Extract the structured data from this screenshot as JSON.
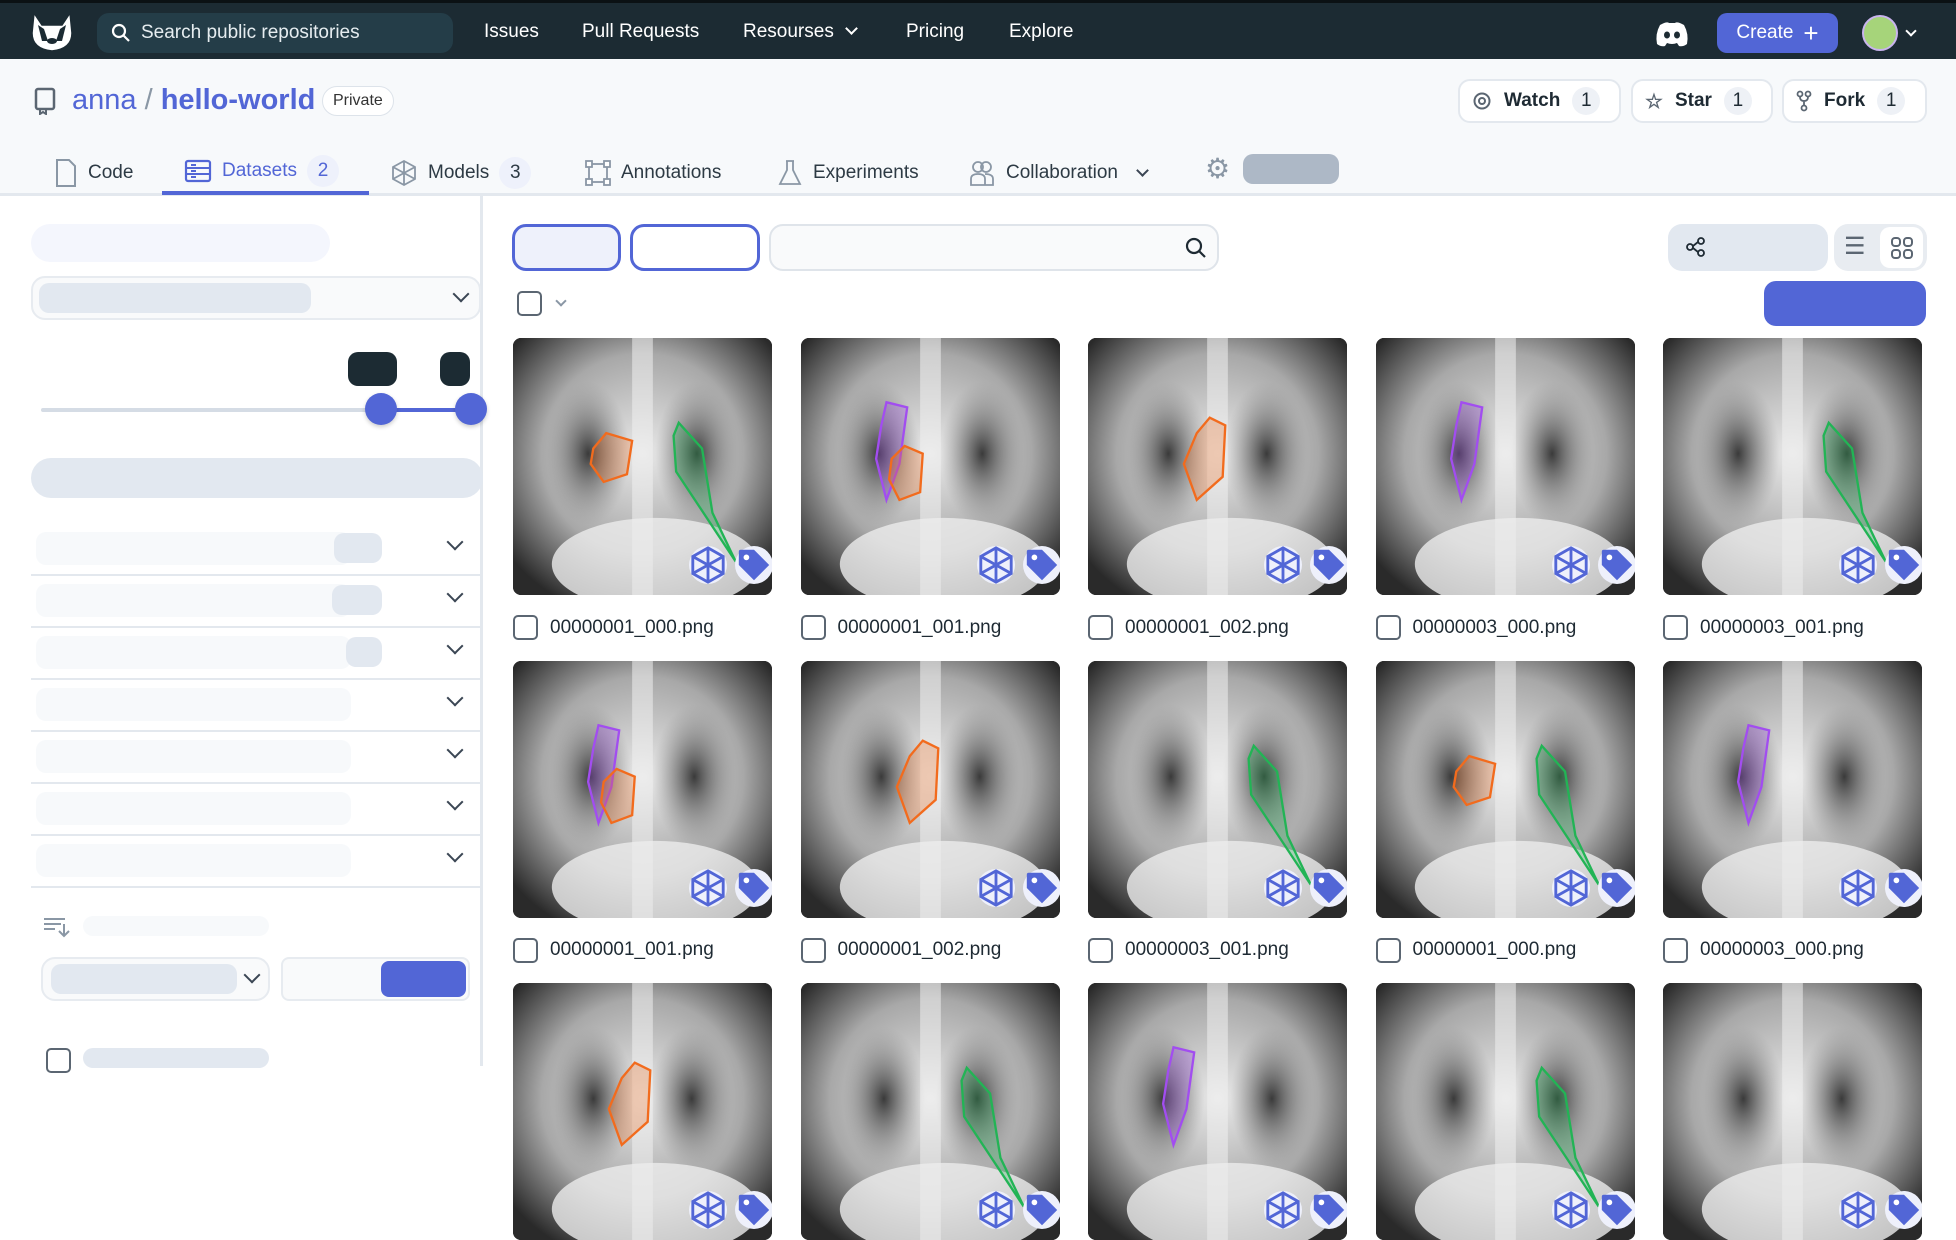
{
  "nav": {
    "search_placeholder": "Search public repositories",
    "links": [
      "Issues",
      "Pull Requests",
      "Resourses",
      "Pricing",
      "Explore"
    ],
    "create_label": "Create"
  },
  "repo": {
    "owner": "anna",
    "separator": "/",
    "name": "hello-world",
    "visibility": "Private",
    "watch": {
      "label": "Watch",
      "count": "1"
    },
    "star": {
      "label": "Star",
      "count": "1"
    },
    "fork": {
      "label": "Fork",
      "count": "1"
    }
  },
  "tabs": [
    {
      "label": "Code",
      "icon": "file-icon"
    },
    {
      "label": "Datasets",
      "count": "2",
      "icon": "database-icon",
      "active": true
    },
    {
      "label": "Models",
      "count": "3",
      "icon": "model-icon"
    },
    {
      "label": "Annotations",
      "icon": "bounding-box-icon"
    },
    {
      "label": "Experiments",
      "icon": "flask-icon"
    },
    {
      "label": "Collaboration",
      "icon": "users-icon"
    }
  ],
  "slider": {
    "min_fraction": 0.79,
    "max_fraction": 1.0
  },
  "colors": {
    "accent": "#5266d6",
    "nav_bg": "#1c2b33",
    "orange": "#f26b1d",
    "purple": "#a24df0",
    "green": "#22b455"
  },
  "grid": {
    "items": [
      {
        "file": "00000001_000.png",
        "annotations": [
          "orange",
          "green"
        ]
      },
      {
        "file": "00000001_001.png",
        "annotations": [
          "purple",
          "orange"
        ]
      },
      {
        "file": "00000001_002.png",
        "annotations": [
          "orange"
        ]
      },
      {
        "file": "00000003_000.png",
        "annotations": [
          "purple"
        ]
      },
      {
        "file": "00000003_001.png",
        "annotations": [
          "green"
        ]
      },
      {
        "file": "00000001_001.png",
        "annotations": [
          "purple",
          "orange"
        ]
      },
      {
        "file": "00000001_002.png",
        "annotations": [
          "orange"
        ]
      },
      {
        "file": "00000003_001.png",
        "annotations": [
          "green"
        ]
      },
      {
        "file": "00000001_000.png",
        "annotations": [
          "orange",
          "green"
        ]
      },
      {
        "file": "00000003_000.png",
        "annotations": [
          "purple"
        ]
      },
      {
        "file": "",
        "annotations": [
          "orange"
        ]
      },
      {
        "file": "",
        "annotations": [
          "green"
        ]
      },
      {
        "file": "",
        "annotations": [
          "purple"
        ]
      },
      {
        "file": "",
        "annotations": [
          "green"
        ]
      },
      {
        "file": "",
        "annotations": []
      }
    ]
  }
}
